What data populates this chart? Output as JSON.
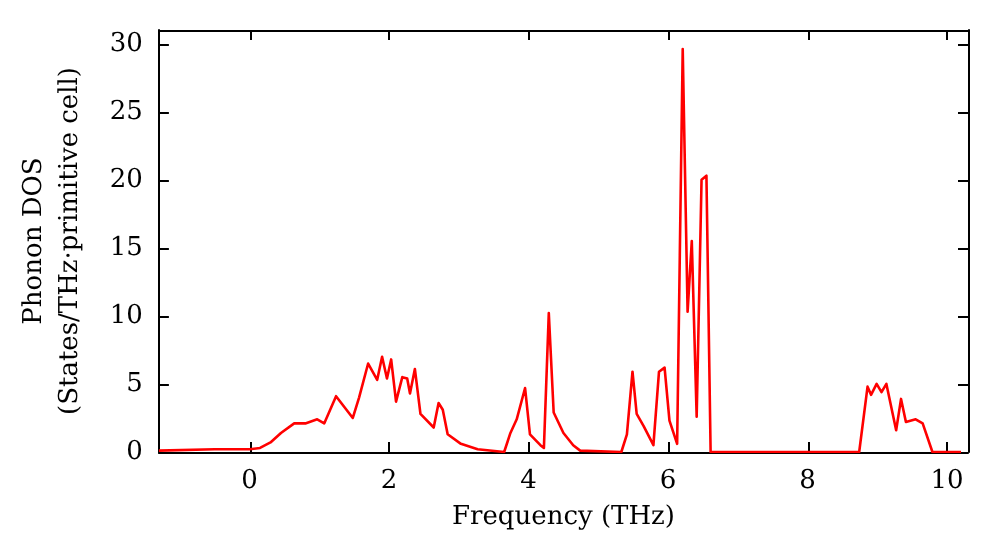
{
  "chart_data": {
    "type": "line",
    "xlabel": "Frequency (THz)",
    "ylabel": "Phonon DOS\n(States/THz·primitive cell)",
    "xlim": [
      -1.3,
      10.3
    ],
    "ylim": [
      0,
      31
    ],
    "xticks": [
      0,
      2,
      4,
      6,
      8,
      10
    ],
    "yticks": [
      0,
      5,
      10,
      15,
      20,
      25,
      30
    ],
    "grid": false,
    "marker": "none",
    "line_style": "solid",
    "series": [
      {
        "color": "#ff0000",
        "x": [
          -1.3,
          -0.5,
          0.0,
          0.15,
          0.3,
          0.45,
          0.64,
          0.8,
          0.97,
          1.07,
          1.24,
          1.48,
          1.57,
          1.7,
          1.83,
          1.9,
          1.97,
          2.03,
          2.1,
          2.19,
          2.26,
          2.3,
          2.37,
          2.45,
          2.64,
          2.71,
          2.77,
          2.84,
          3.03,
          3.27,
          3.65,
          3.74,
          3.83,
          3.95,
          4.02,
          4.17,
          4.22,
          4.29,
          4.36,
          4.5,
          4.64,
          4.74,
          5.33,
          5.41,
          5.49,
          5.55,
          5.65,
          5.79,
          5.87,
          5.95,
          6.02,
          6.13,
          6.21,
          6.28,
          6.34,
          6.41,
          6.48,
          6.55,
          6.61,
          8.74,
          8.86,
          8.91,
          8.99,
          9.06,
          9.13,
          9.27,
          9.34,
          9.41,
          9.55,
          9.65,
          9.79,
          10.2
        ],
        "values": [
          0.1,
          0.2,
          0.2,
          0.3,
          0.7,
          1.4,
          2.1,
          2.1,
          2.4,
          2.1,
          4.1,
          2.5,
          4.0,
          6.5,
          5.3,
          7.0,
          5.4,
          6.8,
          3.7,
          5.5,
          5.4,
          4.3,
          6.1,
          2.8,
          1.8,
          3.6,
          3.1,
          1.3,
          0.6,
          0.2,
          0,
          1.4,
          2.4,
          4.7,
          1.3,
          0.5,
          0.3,
          10.2,
          2.9,
          1.4,
          0.5,
          0.1,
          0,
          1.3,
          5.9,
          2.8,
          1.9,
          0.5,
          5.9,
          6.2,
          2.3,
          0.6,
          29.6,
          10.3,
          15.5,
          2.6,
          20.0,
          20.3,
          0,
          0,
          4.8,
          4.2,
          5.0,
          4.4,
          5.0,
          1.6,
          3.9,
          2.2,
          2.4,
          2.1,
          0,
          0
        ]
      }
    ]
  }
}
